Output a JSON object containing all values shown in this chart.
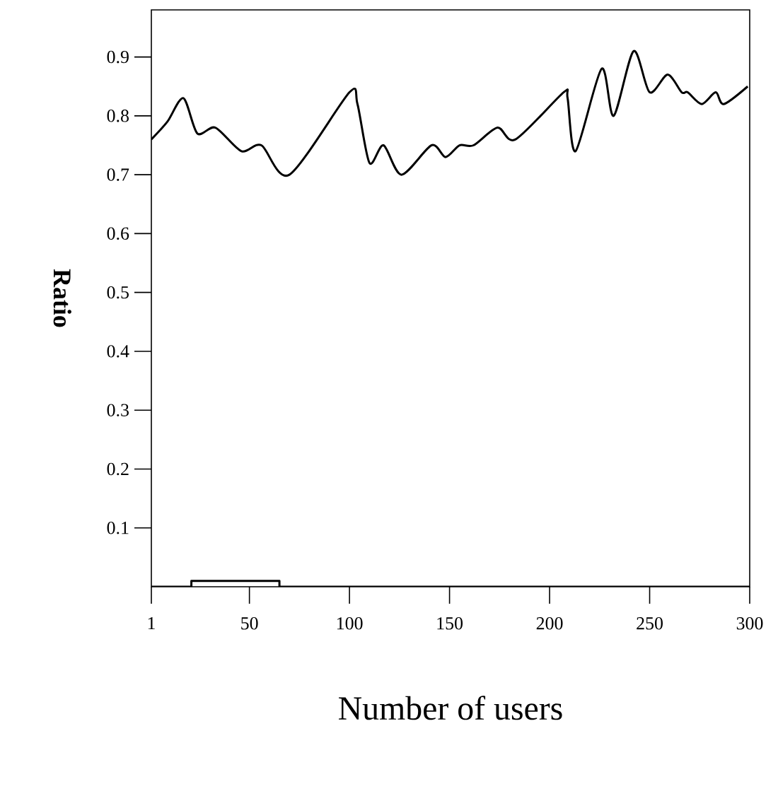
{
  "chart_data": {
    "type": "line",
    "xlabel": "Number of users",
    "ylabel": "Ratio",
    "xlim": [
      1,
      300
    ],
    "xticks": [
      1,
      50,
      100,
      150,
      200,
      250,
      300
    ],
    "ylim": [
      0,
      0.98
    ],
    "yticks": [
      0.1,
      0.2,
      0.3,
      0.4,
      0.5,
      0.6,
      0.7,
      0.8,
      0.9
    ],
    "grid": false,
    "marker": "none",
    "line_style": "solid",
    "series": [
      {
        "color": "#000000",
        "x": [
          1,
          9,
          17,
          24,
          33,
          46,
          56,
          70,
          100,
          104,
          110,
          117,
          126,
          141,
          148,
          155,
          162,
          174,
          183,
          207,
          209,
          213,
          226,
          232,
          242,
          250,
          259,
          266,
          269,
          276,
          283,
          287,
          299
        ],
        "values": [
          0.76,
          0.79,
          0.83,
          0.77,
          0.78,
          0.74,
          0.75,
          0.7,
          0.84,
          0.82,
          0.72,
          0.75,
          0.7,
          0.75,
          0.73,
          0.75,
          0.75,
          0.78,
          0.76,
          0.84,
          0.83,
          0.74,
          0.88,
          0.8,
          0.91,
          0.84,
          0.87,
          0.84,
          0.84,
          0.82,
          0.84,
          0.82,
          0.85
        ]
      },
      {
        "type": "step",
        "color": "#000000",
        "x": [
          1,
          21,
          65,
          300
        ],
        "values": [
          0,
          0.01,
          0,
          0
        ]
      }
    ]
  }
}
